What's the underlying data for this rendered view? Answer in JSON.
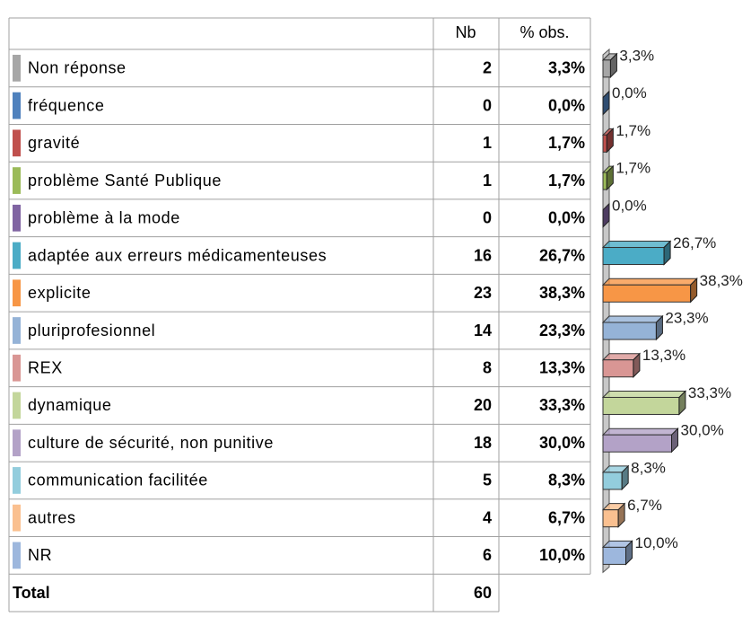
{
  "table": {
    "columns": [
      "Nb",
      "% obs."
    ],
    "rows": [
      {
        "label": "Non réponse",
        "color": "#a6a6a6",
        "nb": 2,
        "pct": 3.3,
        "pct_label": "3,3%"
      },
      {
        "label": "fréquence",
        "color": "#4f81bd",
        "nb": 0,
        "pct": 0.0,
        "pct_label": "0,0%"
      },
      {
        "label": "gravité",
        "color": "#c0504d",
        "nb": 1,
        "pct": 1.7,
        "pct_label": "1,7%"
      },
      {
        "label": "problème Santé Publique",
        "color": "#9bbb59",
        "nb": 1,
        "pct": 1.7,
        "pct_label": "1,7%"
      },
      {
        "label": "problème à la mode",
        "color": "#8064a2",
        "nb": 0,
        "pct": 0.0,
        "pct_label": "0,0%"
      },
      {
        "label": "adaptée aux erreurs médicamenteuses",
        "color": "#4bacc6",
        "nb": 16,
        "pct": 26.7,
        "pct_label": "26,7%"
      },
      {
        "label": "explicite",
        "color": "#f79646",
        "nb": 23,
        "pct": 38.3,
        "pct_label": "38,3%"
      },
      {
        "label": "pluriprofesionnel",
        "color": "#95b3d7",
        "nb": 14,
        "pct": 23.3,
        "pct_label": "23,3%"
      },
      {
        "label": "REX",
        "color": "#d99694",
        "nb": 8,
        "pct": 13.3,
        "pct_label": "13,3%"
      },
      {
        "label": "dynamique",
        "color": "#c3d69b",
        "nb": 20,
        "pct": 33.3,
        "pct_label": "33,3%"
      },
      {
        "label": "culture de sécurité, non punitive",
        "color": "#b3a2c7",
        "nb": 18,
        "pct": 30.0,
        "pct_label": "30,0%"
      },
      {
        "label": "communication facilitée",
        "color": "#93cddd",
        "nb": 5,
        "pct": 8.3,
        "pct_label": "8,3%"
      },
      {
        "label": "autres",
        "color": "#fac090",
        "nb": 4,
        "pct": 6.7,
        "pct_label": "6,7%"
      },
      {
        "label": "NR",
        "color": "#9db7dd",
        "nb": 6,
        "pct": 10.0,
        "pct_label": "10,0%"
      }
    ],
    "total": {
      "label": "Total",
      "nb": 60
    }
  }
}
